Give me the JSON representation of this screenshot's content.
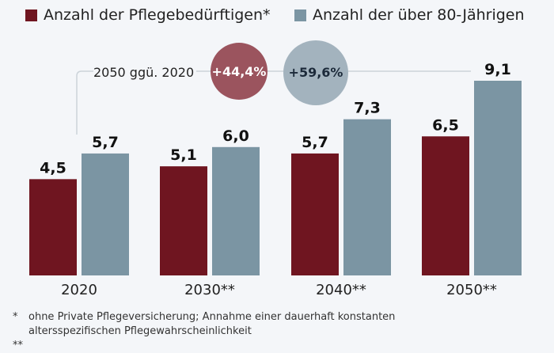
{
  "chart_data": {
    "type": "bar",
    "categories": [
      "2020",
      "2030**",
      "2040**",
      "2050**"
    ],
    "series": [
      {
        "name": "Anzahl der Pflegebedürftigen*",
        "values": [
          4.5,
          5.1,
          5.7,
          6.5
        ],
        "labels": [
          "4,5",
          "5,1",
          "5,7",
          "6,5"
        ],
        "color": "#6f1520"
      },
      {
        "name": "Anzahl der über 80-Jährigen",
        "values": [
          5.7,
          6.0,
          7.3,
          9.1
        ],
        "labels": [
          "5,7",
          "6,0",
          "7,3",
          "9,1"
        ],
        "color": "#7b95a3"
      }
    ],
    "ylim": [
      0,
      9.1
    ],
    "grid": false,
    "legend": "top",
    "annotation": {
      "label": "2050 ggü. 2020",
      "changes": [
        {
          "text": "+44,4%",
          "color": "#9b545e"
        },
        {
          "text": "+59,6%",
          "color": "#a3b3be"
        }
      ]
    }
  },
  "footnotes": {
    "star_mark": "*",
    "line1": "ohne Private Pflegeversicherung; Annahme einer dauerhaft konstanten",
    "line2": "altersspezifischen Pflegewahrscheinlichkeit",
    "double_star_mark": "**"
  }
}
